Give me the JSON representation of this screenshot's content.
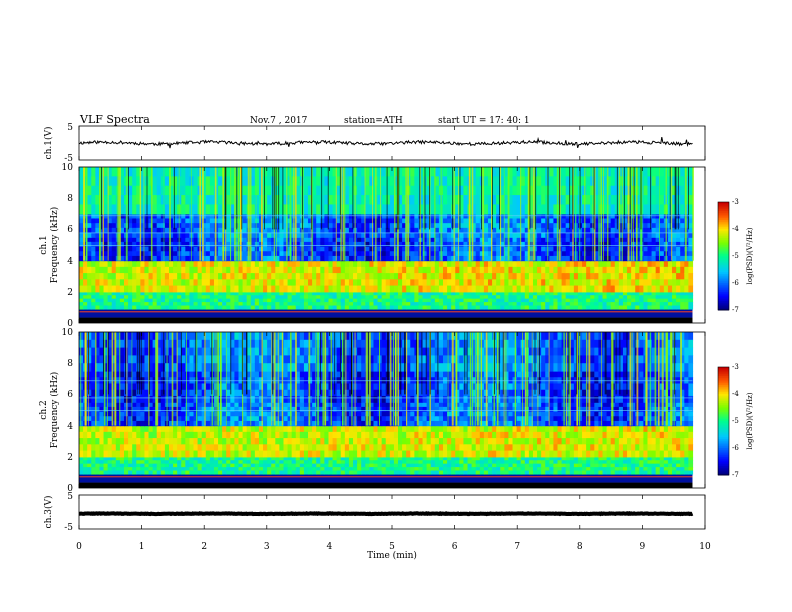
{
  "header": {
    "title": "VLF Spectra",
    "date": "Nov.7  , 2017",
    "station": "station=ATH",
    "start": "start  UT  =   17: 40: 1"
  },
  "chart_data": [
    {
      "type": "line",
      "panel": "ch1-waveform",
      "ylabel": "ch.1(V)",
      "ylim": [
        -5,
        5
      ],
      "yticks": [
        "5",
        "-5"
      ],
      "x_range_min": [
        0,
        9.8
      ],
      "approx_level_V": 0,
      "color": "#000000"
    },
    {
      "type": "heatmap",
      "panel": "ch1-spectrogram",
      "ylabel_line1": "ch.1",
      "ylabel_line2": "Frequency  (kHz)",
      "ylim": [
        0,
        10
      ],
      "yticks": [
        "0",
        "2",
        "4",
        "6",
        "8",
        "10"
      ],
      "x_range_min": [
        0,
        9.8
      ],
      "colorbar": {
        "label": "log(PSD)(V²/Hz)",
        "range": [
          -7,
          -3
        ],
        "ticks": [
          "-3",
          "-4",
          "-5",
          "-6",
          "-7"
        ]
      },
      "bands": [
        {
          "f_low": 0.9,
          "f_high": 2.0,
          "level": -5.0
        },
        {
          "f_low": 2.0,
          "f_high": 4.0,
          "level": -4.2
        },
        {
          "f_low": 4.0,
          "f_high": 5.5,
          "level": -6.2
        },
        {
          "f_low": 5.5,
          "f_high": 7.0,
          "level": -6.0
        },
        {
          "f_low": 7.0,
          "f_high": 10.0,
          "level": -5.2
        }
      ]
    },
    {
      "type": "heatmap",
      "panel": "ch2-spectrogram",
      "ylabel_line1": "ch.2",
      "ylabel_line2": "Frequency  (kHz)",
      "ylim": [
        0,
        10
      ],
      "yticks": [
        "0",
        "2",
        "4",
        "6",
        "8",
        "10"
      ],
      "x_range_min": [
        0,
        9.8
      ],
      "colorbar": {
        "label": "log(PSD)(V²/Hz)",
        "range": [
          -7,
          -3
        ],
        "ticks": [
          "-3",
          "-4",
          "-5",
          "-6",
          "-7"
        ]
      },
      "bands": [
        {
          "f_low": 0.9,
          "f_high": 2.0,
          "level": -5.0
        },
        {
          "f_low": 2.0,
          "f_high": 4.0,
          "level": -4.3
        },
        {
          "f_low": 4.0,
          "f_high": 5.5,
          "level": -6.1
        },
        {
          "f_low": 5.5,
          "f_high": 7.5,
          "level": -6.2
        },
        {
          "f_low": 7.5,
          "f_high": 10.0,
          "level": -6.0
        }
      ]
    },
    {
      "type": "line",
      "panel": "ch3-waveform",
      "ylabel": "ch.3(V)",
      "ylim": [
        -5,
        5
      ],
      "yticks": [
        "5",
        "-5"
      ],
      "x_range_min": [
        0,
        9.8
      ],
      "approx_level_V": -0.5,
      "color": "#000000"
    }
  ],
  "xaxis": {
    "label": "Time  (min)",
    "range": [
      0,
      10
    ],
    "ticks": [
      "0",
      "1",
      "2",
      "3",
      "4",
      "5",
      "6",
      "7",
      "8",
      "9",
      "10"
    ]
  }
}
